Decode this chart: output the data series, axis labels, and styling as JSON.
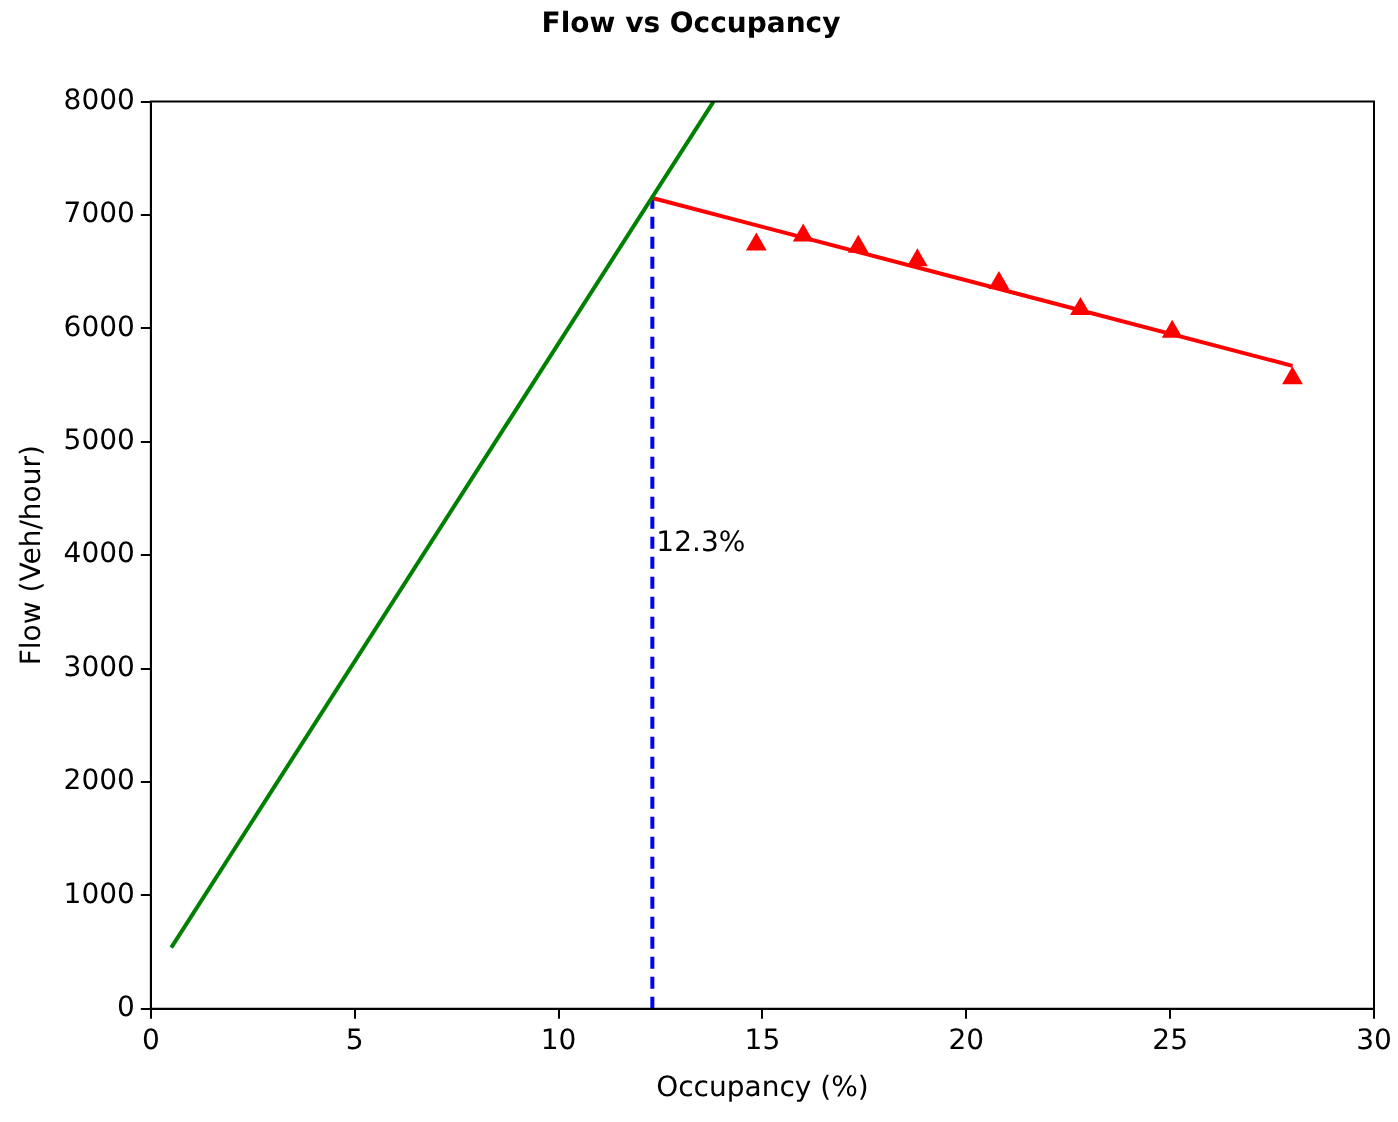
{
  "chart_data": {
    "type": "line",
    "title": "Flow vs Occupancy",
    "xlabel": "Occupancy (%)",
    "ylabel": "Flow (Veh/hour)",
    "xlim": [
      0,
      30
    ],
    "xticks": [
      0,
      5,
      10,
      15,
      20,
      25,
      30
    ],
    "ylim": [
      0,
      8000
    ],
    "yticks": [
      0,
      1000,
      2000,
      3000,
      4000,
      5000,
      6000,
      7000,
      8000
    ],
    "grid": false,
    "legend": false,
    "series": [
      {
        "color": "#008000",
        "x": [
          0.5,
          13.8
        ],
        "values": [
          540,
          8000
        ]
      },
      {
        "color": "#ff0000",
        "x": [
          12.3,
          28.0
        ],
        "values": [
          7150,
          5670
        ]
      },
      {
        "type": "scatter",
        "color": "#ff0000",
        "marker": "triangle",
        "x": [
          14.85,
          16.0,
          17.35,
          18.8,
          20.8,
          22.8,
          25.05,
          28.0
        ],
        "values": [
          6740,
          6820,
          6720,
          6600,
          6400,
          6170,
          5970,
          5560
        ]
      },
      {
        "color": "#0000ff",
        "line_style": "dashed",
        "x": [
          12.3,
          12.3
        ],
        "values": [
          0,
          7150
        ]
      }
    ],
    "annotations": [
      {
        "text": "12.3%",
        "x": 12.3,
        "y": 4100
      }
    ]
  }
}
